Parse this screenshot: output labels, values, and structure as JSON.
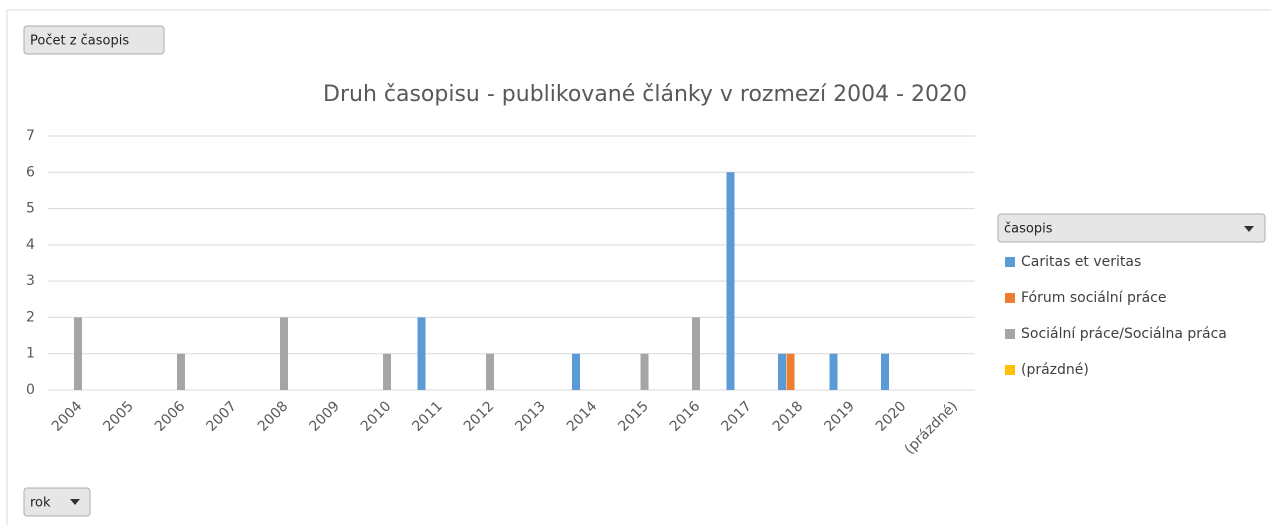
{
  "chart_data": {
    "type": "bar",
    "title": "Druh časopisu - publikované články v rozmezí 2004 - 2020",
    "value_field": "Počet z časopis",
    "axis_field": "rok",
    "legend_field": "časopis",
    "categories": [
      "2004",
      "2005",
      "2006",
      "2007",
      "2008",
      "2009",
      "2010",
      "2011",
      "2012",
      "2013",
      "2014",
      "2015",
      "2016",
      "2017",
      "2018",
      "2019",
      "2020",
      "(prázdné)"
    ],
    "series": [
      {
        "name": "Caritas et veritas",
        "color": "#5b9bd5",
        "values": [
          null,
          null,
          null,
          null,
          null,
          null,
          null,
          2,
          null,
          null,
          1,
          null,
          null,
          6,
          1,
          1,
          1,
          null
        ]
      },
      {
        "name": "Fórum sociální práce",
        "color": "#ed7d31",
        "values": [
          null,
          null,
          null,
          null,
          null,
          null,
          null,
          null,
          null,
          null,
          null,
          null,
          null,
          null,
          1,
          null,
          null,
          null
        ]
      },
      {
        "name": "Sociální práce/Sociálna práca",
        "color": "#a5a5a5",
        "values": [
          2,
          null,
          1,
          null,
          2,
          null,
          1,
          null,
          1,
          null,
          null,
          1,
          2,
          null,
          null,
          null,
          null,
          null
        ]
      },
      {
        "name": "(prázdné)",
        "color": "#ffc000",
        "values": [
          null,
          null,
          null,
          null,
          null,
          null,
          null,
          null,
          null,
          null,
          null,
          null,
          null,
          null,
          null,
          null,
          null,
          null
        ]
      }
    ],
    "ylim": [
      0,
      7
    ],
    "yticks": [
      0,
      1,
      2,
      3,
      4,
      5,
      6,
      7
    ],
    "grid": true,
    "legend": "right"
  }
}
